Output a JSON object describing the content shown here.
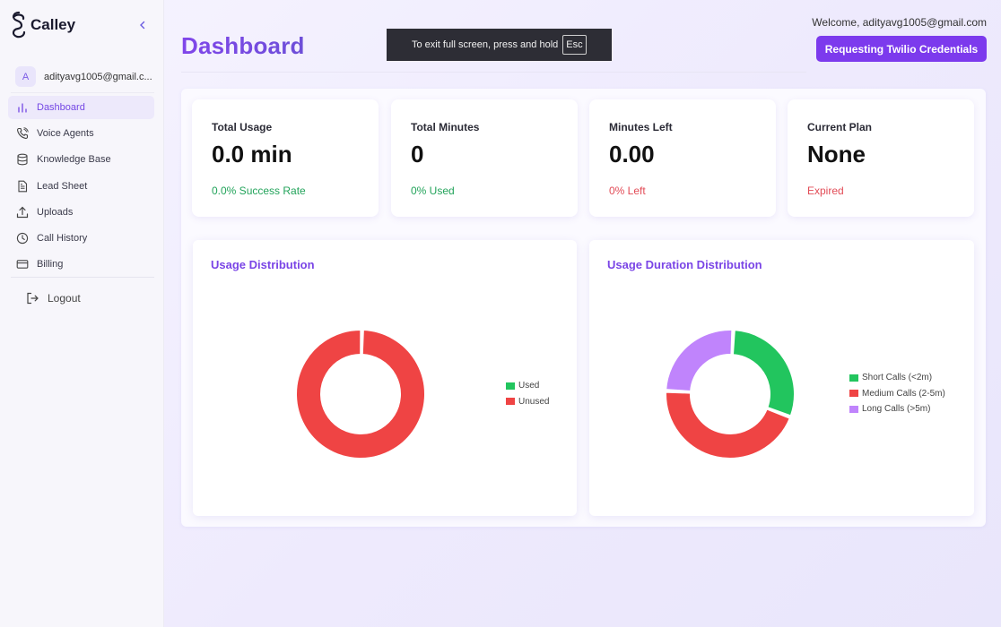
{
  "app": {
    "name": "Calley"
  },
  "user": {
    "initial": "A",
    "email_short": "adityavg1005@gmail.c..."
  },
  "nav": {
    "items": [
      {
        "label": "Dashboard",
        "icon": "bar-chart-icon",
        "active": true
      },
      {
        "label": "Voice Agents",
        "icon": "phone-icon"
      },
      {
        "label": "Knowledge Base",
        "icon": "database-icon"
      },
      {
        "label": "Lead Sheet",
        "icon": "document-icon"
      },
      {
        "label": "Uploads",
        "icon": "upload-icon"
      },
      {
        "label": "Call History",
        "icon": "clock-icon"
      },
      {
        "label": "Billing",
        "icon": "credit-card-icon"
      }
    ],
    "logout": "Logout"
  },
  "header": {
    "title": "Dashboard",
    "welcome": "Welcome, adityavg1005@gmail.com",
    "cta_label": "Requesting Twilio Credentials"
  },
  "fullscreen_toast": {
    "text": "To exit full screen, press and hold",
    "key": "Esc"
  },
  "stats": [
    {
      "title": "Total Usage",
      "value": "0.0 min",
      "sub": "0.0% Success Rate",
      "sub_color": "#22a35a"
    },
    {
      "title": "Total Minutes",
      "value": "0",
      "sub": "0% Used",
      "sub_color": "#22a35a"
    },
    {
      "title": "Minutes Left",
      "value": "0.00",
      "sub": "0% Left",
      "sub_color": "#e24b56"
    },
    {
      "title": "Current Plan",
      "value": "None",
      "sub": "Expired",
      "sub_color": "#e24b56"
    }
  ],
  "colors": {
    "accent": "#7c3aed",
    "green": "#22c55e",
    "red": "#ef4444",
    "purple": "#c084fc"
  },
  "chart_data": [
    {
      "type": "pie",
      "title": "Usage Distribution",
      "donut": true,
      "categories": [
        "Used",
        "Unused"
      ],
      "values": [
        0,
        100
      ],
      "colors": [
        "#22c55e",
        "#ef4444"
      ],
      "legend": "right"
    },
    {
      "type": "pie",
      "title": "Usage Duration Distribution",
      "donut": true,
      "categories": [
        "Short Calls (<2m)",
        "Medium Calls (2-5m)",
        "Long Calls (>5m)"
      ],
      "values": [
        30,
        45,
        25
      ],
      "colors": [
        "#22c55e",
        "#ef4444",
        "#c084fc"
      ],
      "legend": "right"
    }
  ]
}
